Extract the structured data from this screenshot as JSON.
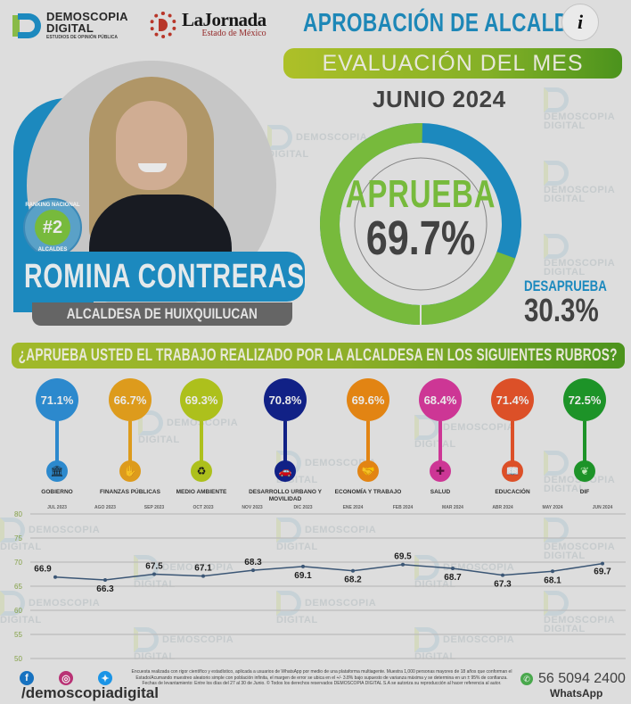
{
  "header": {
    "brand_logo": {
      "name": "DEMOSCOPIA",
      "name2": "DIGITAL",
      "tagline": "ESTUDIOS DE OPINIÓN PÚBLICA"
    },
    "partner_logo": {
      "name": "LaJornada",
      "subtitle": "Estado de México"
    },
    "title": "APROBACIÓN DE ALCALDES",
    "info_button": "i",
    "subtitle": "EVALUACIÓN DEL MES",
    "period": "JUNIO 2024"
  },
  "profile": {
    "name": "ROMINA CONTRERAS",
    "role": "ALCALDESA DE HUIXQUILUCAN",
    "rank_badge": {
      "top": "RANKING NACIONAL",
      "rank": "#2",
      "bottom": "ALCALDES"
    }
  },
  "approval": {
    "approve_label": "APRUEBA",
    "approve_value": "69.7%",
    "disapprove_label": "DESAPRUEBA",
    "disapprove_value": "30.3%",
    "colors": {
      "approve": "#7cc23f",
      "disapprove": "#1e8fc6"
    }
  },
  "question": "¿APRUEBA USTED EL TRABAJO REALIZADO POR LA ALCALDESA EN LOS SIGUIENTES RUBROS?",
  "categories": [
    {
      "label": "GOBIERNO",
      "value": "71.1%",
      "color": "#2e8fd6",
      "icon": "government-building-icon",
      "glyph": "🏛"
    },
    {
      "label": "FINANZAS PÚBLICAS",
      "value": "66.7%",
      "color": "#e6a21e",
      "icon": "finance-hand-icon",
      "glyph": "✋"
    },
    {
      "label": "MEDIO AMBIENTE",
      "value": "69.3%",
      "color": "#b5c81e",
      "icon": "recycle-icon",
      "glyph": "♻"
    },
    {
      "label": "DESARROLLO URBANO Y MOVILIDAD",
      "value": "70.8%",
      "color": "#12238c",
      "icon": "car-icon",
      "glyph": "🚗"
    },
    {
      "label": "ECONOMÍA Y TRABAJO",
      "value": "69.6%",
      "color": "#ec8a14",
      "icon": "handshake-icon",
      "glyph": "🤝"
    },
    {
      "label": "SALUD",
      "value": "68.4%",
      "color": "#d6399c",
      "icon": "health-cross-icon",
      "glyph": "✚"
    },
    {
      "label": "EDUCACIÓN",
      "value": "71.4%",
      "color": "#e5542a",
      "icon": "book-icon",
      "glyph": "📖"
    },
    {
      "label": "DIF",
      "value": "72.5%",
      "color": "#1f9a2a",
      "icon": "dif-family-icon",
      "glyph": "❦"
    }
  ],
  "chart_data": [
    {
      "type": "pie",
      "title": "Aprobación de Alcaldes - Junio 2024",
      "categories": [
        "APRUEBA",
        "DESAPRUEBA"
      ],
      "values": [
        69.7,
        30.3
      ],
      "colors": [
        "#7cc23f",
        "#1e8fc6"
      ]
    },
    {
      "type": "bar",
      "title": "¿APRUEBA USTED EL TRABAJO REALIZADO POR LA ALCALDESA EN LOS SIGUIENTES RUBROS?",
      "categories": [
        "GOBIERNO",
        "FINANZAS PÚBLICAS",
        "MEDIO AMBIENTE",
        "DESARROLLO URBANO Y MOVILIDAD",
        "ECONOMÍA Y TRABAJO",
        "SALUD",
        "EDUCACIÓN",
        "DIF"
      ],
      "values": [
        71.1,
        66.7,
        69.3,
        70.8,
        69.6,
        68.4,
        71.4,
        72.5
      ],
      "ylabel": "%"
    },
    {
      "type": "line",
      "title": "",
      "x": [
        "JUL 2023",
        "AGO 2023",
        "SEP 2023",
        "OCT 2023",
        "NOV 2023",
        "DIC 2023",
        "ENE 2024",
        "FEB 2024",
        "MAR 2024",
        "ABR 2024",
        "MAY 2024",
        "JUN 2024"
      ],
      "series": [
        {
          "name": "Aprobación",
          "values": [
            66.9,
            66.3,
            67.5,
            67.1,
            68.3,
            69.1,
            68.2,
            69.5,
            68.7,
            67.3,
            68.1,
            69.7
          ]
        }
      ],
      "yticks": [
        50,
        55,
        60,
        65,
        70,
        75,
        80
      ],
      "ylim": [
        50,
        80
      ],
      "grid": true,
      "line_color": "#3e5a7a"
    }
  ],
  "footer": {
    "social_icons": [
      "facebook-icon",
      "instagram-icon",
      "twitter-icon"
    ],
    "handle": "/demoscopiadigital",
    "disclaimer": "Encuesta realizada con rigor científico y estadístico, aplicada a usuarios de WhatsApp por medio de una plataforma multiagente. Muestra 1,000 personas mayores de 18 años que conforman el Estado/Acumando muestreo aleatorio simple con población infinita, el margen de error se ubica en el +/- 3.8% bajo supuesto de varianza máxima y se determina en un ± 95% de confianza. Fechas de levantamiento: Entre los días del 27 al 30 de Junio. © Todos los derechos reservados DEMOSCOPIA DIGITAL S.A se autoriza su reproducción al hacer referencia al autor.",
    "phone": "56 5094 2400",
    "phone_label": "WhatsApp"
  }
}
